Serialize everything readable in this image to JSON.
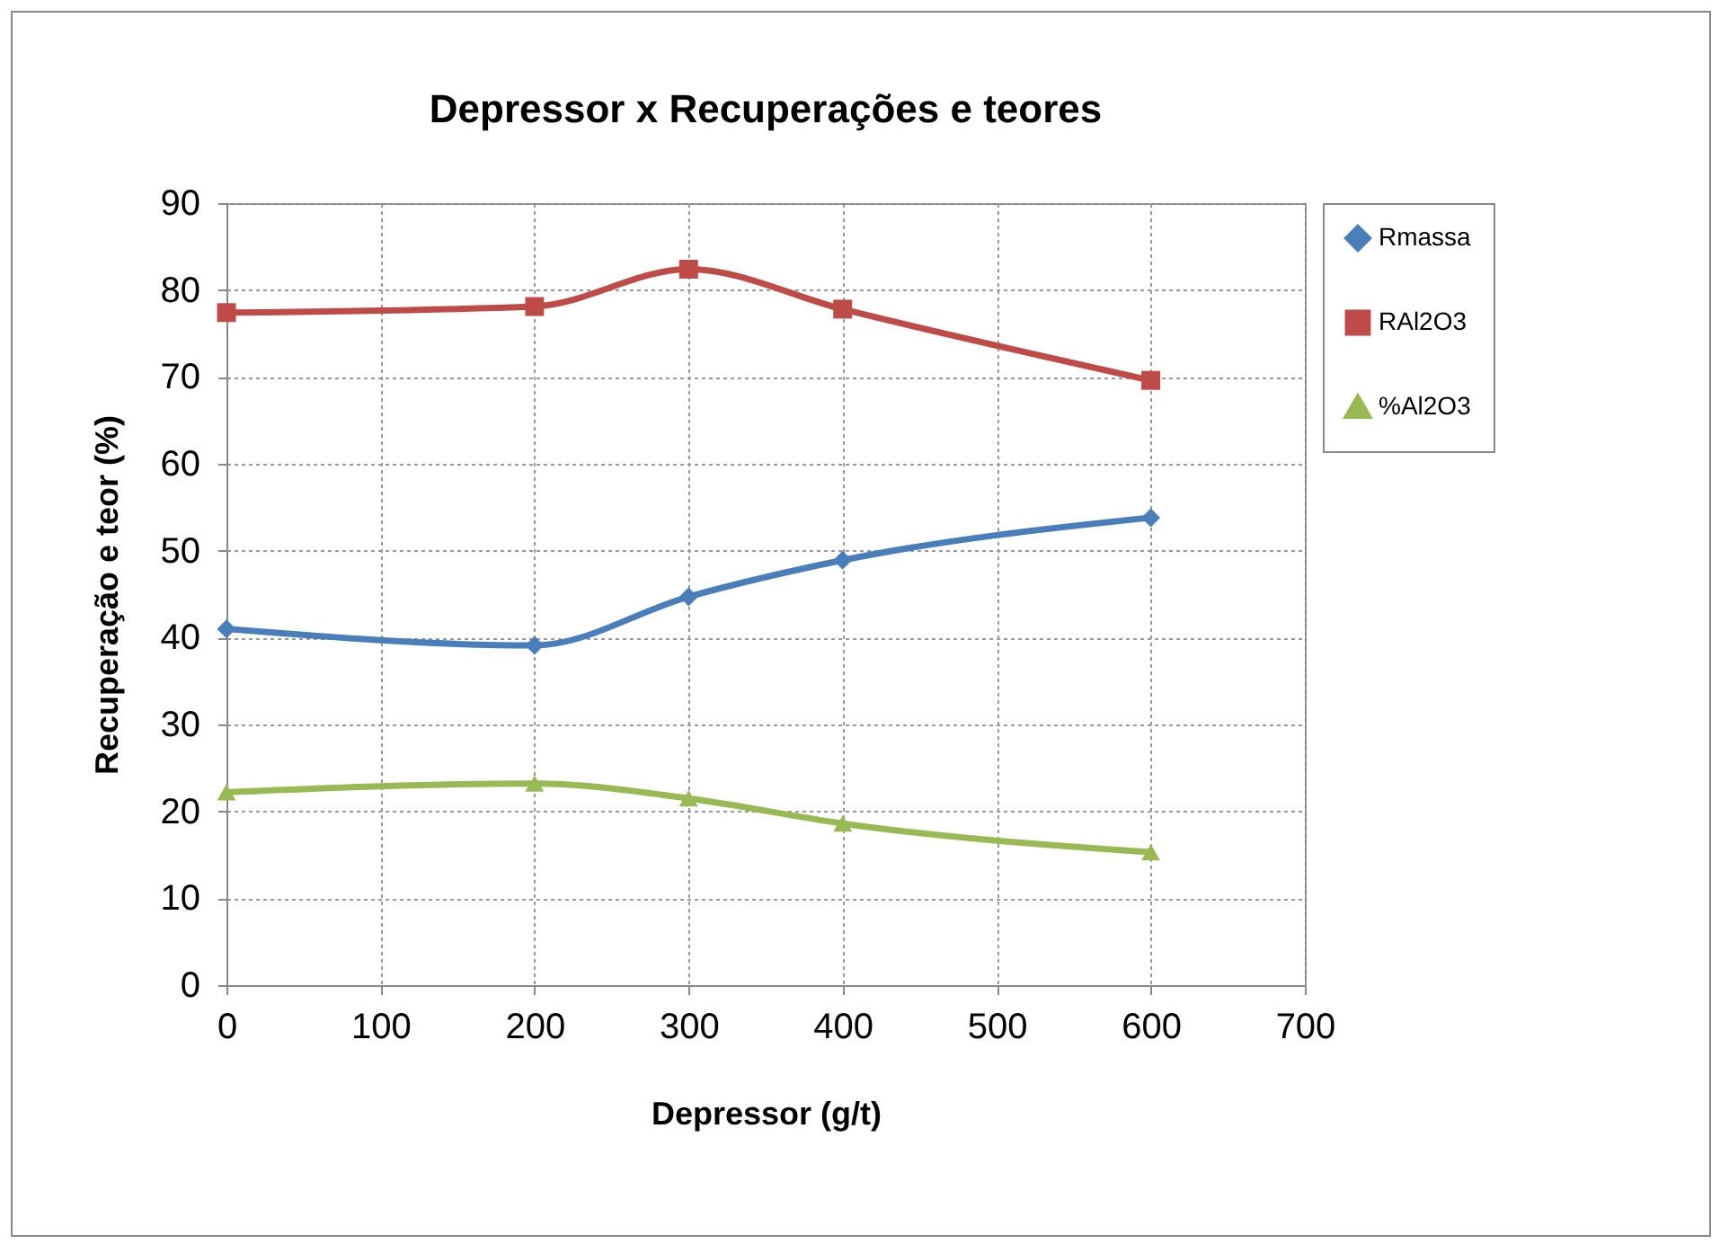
{
  "chart_data": {
    "type": "line",
    "title": "Depressor x Recuperações e teores",
    "xlabel": "Depressor (g/t)",
    "ylabel": "Recuperação e teor (%)",
    "x": [
      0,
      200,
      300,
      400,
      600
    ],
    "series": [
      {
        "name": "Rmassa",
        "color": "#4a7ebb",
        "marker": "diamond",
        "values": [
          41.0,
          39.1,
          44.7,
          48.9,
          53.8
        ]
      },
      {
        "name": "RAl2O3",
        "color": "#be4b48",
        "marker": "square",
        "values": [
          77.4,
          78.1,
          82.4,
          77.8,
          69.6
        ]
      },
      {
        "name": "%Al2O3",
        "color": "#98b954",
        "marker": "triangle",
        "values": [
          22.2,
          23.2,
          21.5,
          18.6,
          15.3
        ]
      }
    ],
    "xlim": [
      0,
      700
    ],
    "xticks": [
      0,
      100,
      200,
      300,
      400,
      500,
      600,
      700
    ],
    "ylim": [
      0,
      90
    ],
    "yticks": [
      0,
      10,
      20,
      30,
      40,
      50,
      60,
      70,
      80,
      90
    ],
    "grid": true,
    "legend": "right",
    "line_style": "solid"
  }
}
